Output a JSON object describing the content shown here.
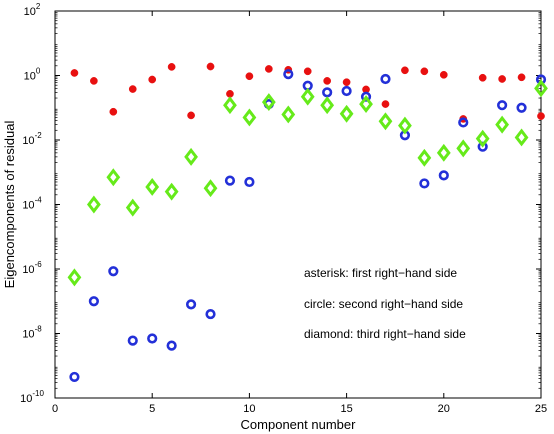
{
  "chart_data": {
    "type": "scatter",
    "title": "",
    "xlabel": "Component number",
    "ylabel": "Eigencomponents of residual",
    "xlim": [
      0,
      25
    ],
    "ylim_exp": [
      -10,
      2
    ],
    "yscale": "log",
    "grid": false,
    "x_ticks": [
      0,
      5,
      10,
      15,
      20,
      25
    ],
    "y_ticks": [
      {
        "base": "10",
        "exp": "-10"
      },
      {
        "base": "10",
        "exp": "-8"
      },
      {
        "base": "10",
        "exp": "-6"
      },
      {
        "base": "10",
        "exp": "-4"
      },
      {
        "base": "10",
        "exp": "-2"
      },
      {
        "base": "10",
        "exp": "0"
      },
      {
        "base": "10",
        "exp": "2"
      }
    ],
    "annotations": [
      "asterisk:  first right−hand side",
      "circle:  second right−hand side",
      "diamond:  third right−hand side"
    ],
    "series": [
      {
        "marker": "asterisk",
        "color": "#e81010",
        "x": [
          1,
          2,
          3,
          4,
          5,
          6,
          7,
          8,
          9,
          10,
          11,
          12,
          13,
          14,
          15,
          16,
          17,
          18,
          19,
          20,
          21,
          22,
          23,
          24,
          25
        ],
        "y": [
          1.2,
          0.68,
          0.075,
          0.38,
          0.75,
          1.85,
          0.058,
          1.9,
          0.27,
          0.95,
          1.6,
          1.5,
          1.35,
          0.68,
          0.62,
          0.37,
          0.13,
          1.45,
          1.35,
          1.05,
          0.045,
          0.85,
          0.78,
          0.88,
          0.055
        ]
      },
      {
        "marker": "circle",
        "color": "#2330d8",
        "x": [
          1,
          2,
          3,
          4,
          5,
          6,
          7,
          8,
          9,
          10,
          11,
          12,
          13,
          14,
          15,
          16,
          17,
          18,
          19,
          20,
          21,
          22,
          23,
          24,
          25
        ],
        "y": [
          4.5e-10,
          1e-07,
          8.5e-07,
          6e-09,
          7e-09,
          4.2e-09,
          8e-08,
          4e-08,
          0.00055,
          0.0005,
          0.13,
          1.1,
          0.48,
          0.3,
          0.33,
          0.22,
          0.78,
          0.014,
          0.00045,
          0.0008,
          0.035,
          0.0062,
          0.12,
          0.1,
          0.75
        ]
      },
      {
        "marker": "diamond",
        "color": "#66ea1a",
        "x": [
          1,
          2,
          3,
          4,
          5,
          6,
          7,
          8,
          9,
          10,
          11,
          12,
          13,
          14,
          15,
          16,
          17,
          18,
          19,
          20,
          21,
          22,
          23,
          24,
          25
        ],
        "y": [
          5.5e-07,
          0.0001,
          0.0007,
          8e-05,
          0.00035,
          0.00025,
          0.003,
          0.00032,
          0.12,
          0.05,
          0.15,
          0.062,
          0.22,
          0.12,
          0.065,
          0.13,
          0.038,
          0.028,
          0.0028,
          0.004,
          0.0055,
          0.011,
          0.03,
          0.012,
          0.4
        ]
      }
    ]
  }
}
